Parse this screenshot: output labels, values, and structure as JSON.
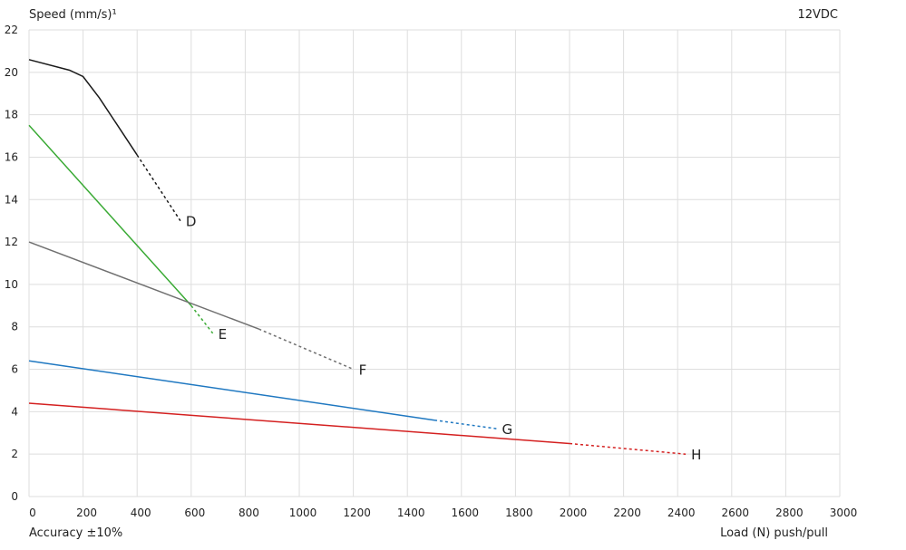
{
  "chart_data": {
    "type": "line",
    "title": "",
    "ylabel": "Speed (mm/s)¹",
    "corner_label": "12VDC",
    "xlabel": "Load (N) push/pull",
    "note": "Accuracy ±10%",
    "xlim": [
      0,
      3000
    ],
    "ylim": [
      0,
      22
    ],
    "x_ticks": [
      0,
      200,
      400,
      600,
      800,
      1000,
      1200,
      1400,
      1600,
      1800,
      2000,
      2200,
      2400,
      2600,
      2800,
      3000
    ],
    "y_ticks": [
      0,
      2,
      4,
      6,
      8,
      10,
      12,
      14,
      16,
      18,
      20,
      22
    ],
    "grid": true,
    "series": [
      {
        "name": "D",
        "color": "#1a1a1a",
        "solid": [
          [
            0,
            20.6
          ],
          [
            150,
            20.1
          ],
          [
            200,
            19.8
          ],
          [
            260,
            18.8
          ],
          [
            400,
            16.1
          ]
        ],
        "dashed": [
          [
            400,
            16.1
          ],
          [
            560,
            13.0
          ]
        ]
      },
      {
        "name": "E",
        "color": "#3aaa35",
        "solid": [
          [
            0,
            17.5
          ],
          [
            600,
            9.0
          ]
        ],
        "dashed": [
          [
            600,
            9.0
          ],
          [
            680,
            7.7
          ]
        ]
      },
      {
        "name": "F",
        "color": "#707070",
        "solid": [
          [
            0,
            12.0
          ],
          [
            850,
            7.9
          ]
        ],
        "dashed": [
          [
            850,
            7.9
          ],
          [
            1200,
            6.0
          ]
        ]
      },
      {
        "name": "G",
        "color": "#1f78c1",
        "solid": [
          [
            0,
            6.4
          ],
          [
            1500,
            3.6
          ]
        ],
        "dashed": [
          [
            1500,
            3.6
          ],
          [
            1730,
            3.2
          ]
        ]
      },
      {
        "name": "H",
        "color": "#d42020",
        "solid": [
          [
            0,
            4.4
          ],
          [
            2000,
            2.5
          ]
        ],
        "dashed": [
          [
            2000,
            2.5
          ],
          [
            2430,
            2.0
          ]
        ]
      }
    ]
  }
}
